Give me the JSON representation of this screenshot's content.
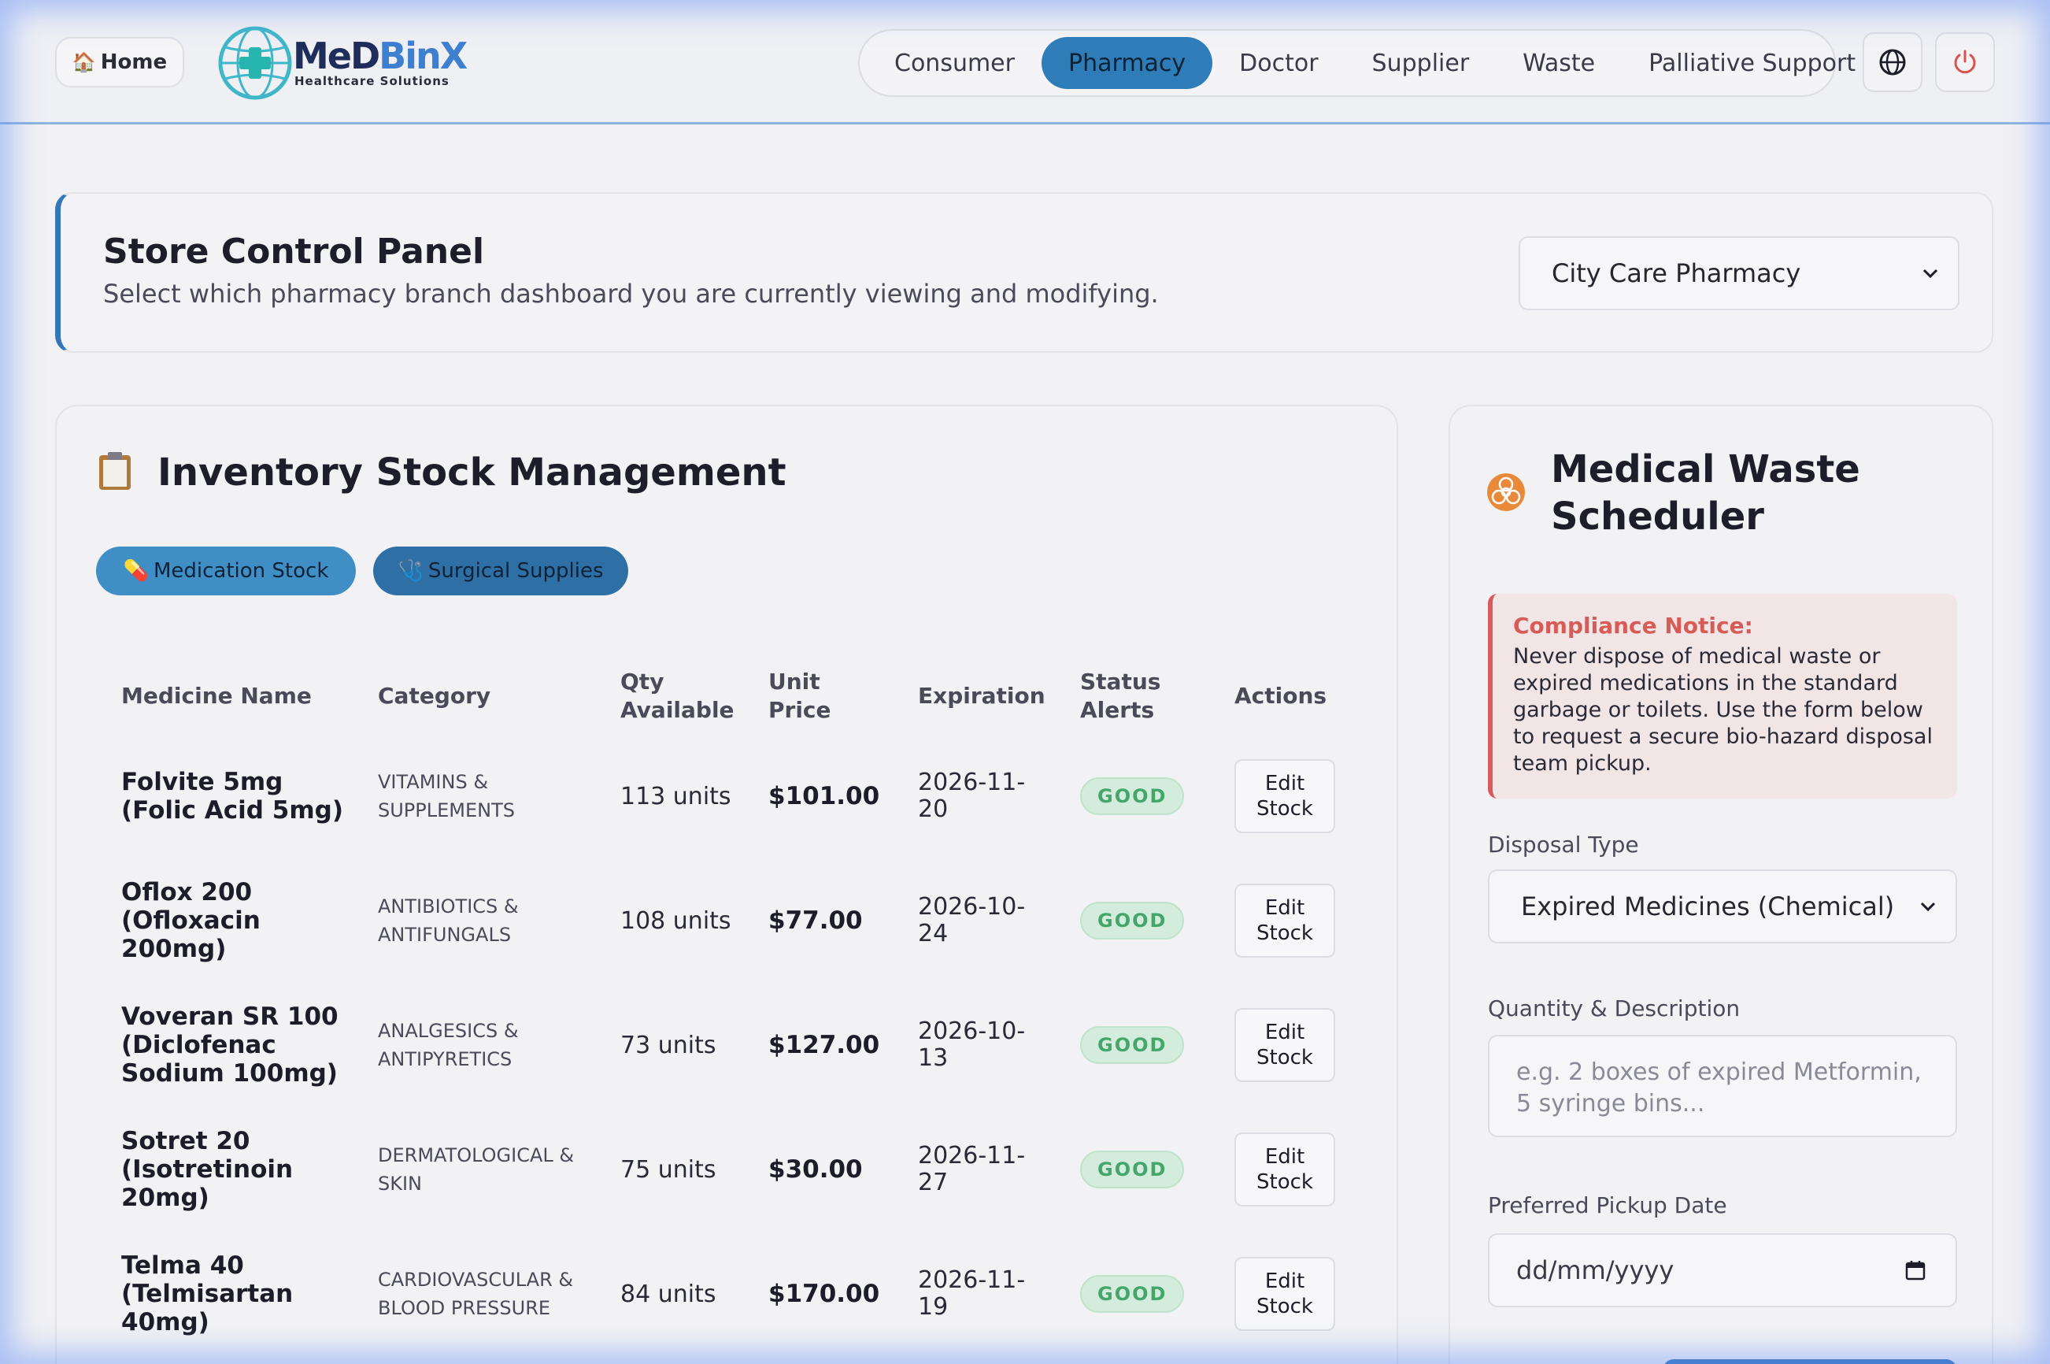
{
  "header": {
    "home_label": "Home",
    "logo_text_a": "MeD",
    "logo_text_b": "BinX",
    "logo_tagline": "Healthcare Solutions",
    "nav": [
      "Consumer",
      "Pharmacy",
      "Doctor",
      "Supplier",
      "Waste",
      "Palliative Support"
    ],
    "active_nav": "Pharmacy",
    "icons": [
      "globe-icon",
      "power-icon"
    ]
  },
  "store_panel": {
    "title": "Store Control Panel",
    "subtitle": "Select which pharmacy branch dashboard you are currently viewing and modifying.",
    "selected_store": "City Care Pharmacy"
  },
  "inventory": {
    "title": "Inventory Stock Management",
    "tabs": [
      "Medication Stock",
      "Surgical Supplies"
    ],
    "columns": [
      "Medicine Name",
      "Category",
      "Qty Available",
      "Unit Price",
      "Expiration",
      "Status Alerts",
      "Actions"
    ],
    "rows": [
      {
        "name": "Folvite 5mg (Folic Acid 5mg)",
        "category": "VITAMINS & SUPPLEMENTS",
        "qty": "113 units",
        "price": "$101.00",
        "expiration": "2026-11-20",
        "status": "GOOD",
        "action": "Edit Stock"
      },
      {
        "name": "Oflox 200 (Ofloxacin 200mg)",
        "category": "ANTIBIOTICS & ANTIFUNGALS",
        "qty": "108 units",
        "price": "$77.00",
        "expiration": "2026-10-24",
        "status": "GOOD",
        "action": "Edit Stock"
      },
      {
        "name": "Voveran SR 100 (Diclofenac Sodium 100mg)",
        "category": "ANALGESICS & ANTIPYRETICS",
        "qty": "73 units",
        "price": "$127.00",
        "expiration": "2026-10-13",
        "status": "GOOD",
        "action": "Edit Stock"
      },
      {
        "name": "Sotret 20 (Isotretinoin 20mg)",
        "category": "DERMATOLOGICAL & SKIN",
        "qty": "75 units",
        "price": "$30.00",
        "expiration": "2026-11-27",
        "status": "GOOD",
        "action": "Edit Stock"
      },
      {
        "name": "Telma 40 (Telmisartan 40mg)",
        "category": "CARDIOVASCULAR & BLOOD PRESSURE",
        "qty": "84 units",
        "price": "$170.00",
        "expiration": "2026-11-19",
        "status": "GOOD",
        "action": "Edit Stock"
      }
    ]
  },
  "waste": {
    "title": "Medical Waste Scheduler",
    "notice_title": "Compliance Notice:",
    "notice_text": "Never dispose of medical waste or expired medications in the standard garbage or toilets. Use the form below to request a secure bio-hazard disposal team pickup.",
    "disposal_label": "Disposal Type",
    "disposal_value": "Expired Medicines (Chemical)",
    "qty_label": "Quantity & Description",
    "qty_placeholder": "e.g. 2 boxes of expired Metformin, 5 syringe bins...",
    "date_label": "Preferred Pickup Date",
    "date_placeholder": "dd/mm/yyyy"
  },
  "colors": {
    "accent": "#2f7db8",
    "status_good": "#45a66c",
    "notice": "#d75b57",
    "biohazard": "#e98a3a"
  }
}
